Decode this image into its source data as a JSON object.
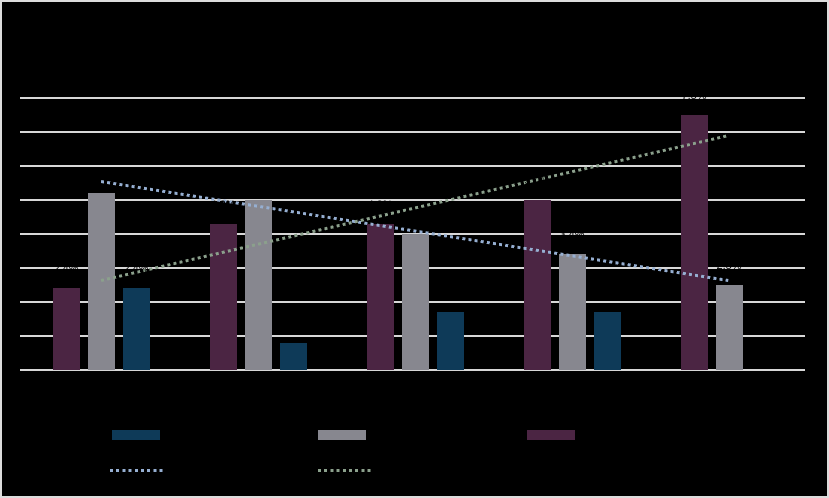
{
  "chart_data": {
    "type": "bar",
    "title": "",
    "categories": [
      "",
      "",
      "",
      "",
      ""
    ],
    "ylim": [
      0,
      8
    ],
    "gridline_count": 9,
    "gridline_step": 1,
    "grid_on": true,
    "value_format": "percent",
    "series": [
      {
        "name": "maroon-bars",
        "color": "#4b2543",
        "values": [
          2.4,
          4.3,
          4.3,
          5.0,
          7.5
        ],
        "labels": [
          "2.4%",
          "4.3%",
          "4.3%",
          "5.0%",
          "7.5%"
        ]
      },
      {
        "name": "gray-bars",
        "color": "#87878f",
        "values": [
          5.2,
          5.0,
          4.0,
          3.4,
          2.5
        ],
        "labels": [
          "5.2%",
          "5.0%",
          "4.0%",
          "3.4%",
          "2.5%"
        ]
      },
      {
        "name": "navy-bars",
        "color": "#0e3a58",
        "values": [
          2.4,
          0.8,
          1.7,
          1.7,
          null
        ],
        "labels": [
          "2.4%",
          "0.8%",
          "1.7%",
          "1.7%",
          ""
        ]
      }
    ],
    "trendlines": [
      {
        "name": "linear-trend-gray",
        "color": "#96afd2",
        "style": "dotted",
        "start_value": 5.53,
        "end_value": 2.62
      },
      {
        "name": "linear-trend-maroon",
        "color": "#8ba08c",
        "style": "dotted",
        "start_value": 2.62,
        "end_value": 6.88
      }
    ],
    "legend_position": "bottom"
  },
  "legend": {
    "bar_items": [
      {
        "label": "",
        "color": "#0e3a58"
      },
      {
        "label": "",
        "color": "#87878f"
      },
      {
        "label": "",
        "color": "#4b2543"
      }
    ],
    "line_items": [
      {
        "label": "",
        "color": "#96afd2"
      },
      {
        "label": "",
        "color": "#8ba08c"
      }
    ]
  },
  "colors": {
    "background": "#000000",
    "gridline": "#d7d7d7",
    "border": "#dcdcdc",
    "label_text": "#000000"
  }
}
